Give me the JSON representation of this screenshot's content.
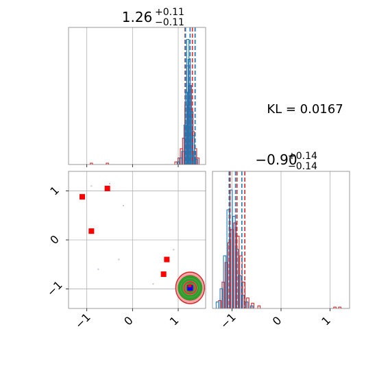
{
  "chart_data": {
    "type": "corner",
    "kl_text": "KL = 0.0167",
    "colors": {
      "series_a": "#1f77b4",
      "series_b": "#d62728",
      "grid": "#b0b0b0",
      "green": "#2ca02c",
      "marker": "#ff0000",
      "truth": "#0000ff"
    },
    "panels": [
      {
        "id": "hist-param-1",
        "type": "histogram",
        "title": {
          "value": "1.26",
          "plus": "+0.11",
          "minus": "−0.11"
        },
        "xlim": [
          -1.4,
          1.6
        ],
        "quantiles_blue": [
          1.16,
          1.26,
          1.37
        ],
        "quantiles_red": [
          1.15,
          1.31,
          1.37
        ],
        "series_a_bins": [
          {
            "x": 1.0,
            "y": 0.02
          },
          {
            "x": 1.05,
            "y": 0.05
          },
          {
            "x": 1.1,
            "y": 0.1
          },
          {
            "x": 1.15,
            "y": 0.3
          },
          {
            "x": 1.18,
            "y": 0.55
          },
          {
            "x": 1.21,
            "y": 0.95
          },
          {
            "x": 1.24,
            "y": 0.8
          },
          {
            "x": 1.27,
            "y": 0.6
          },
          {
            "x": 1.3,
            "y": 0.4
          },
          {
            "x": 1.33,
            "y": 0.22
          },
          {
            "x": 1.36,
            "y": 0.1
          },
          {
            "x": 1.4,
            "y": 0.04
          }
        ],
        "series_b_bins": [
          {
            "x": 0.95,
            "y": 0.02
          },
          {
            "x": 1.02,
            "y": 0.05
          },
          {
            "x": 1.07,
            "y": 0.12
          },
          {
            "x": 1.12,
            "y": 0.2
          },
          {
            "x": 1.17,
            "y": 0.45
          },
          {
            "x": 1.21,
            "y": 0.75
          },
          {
            "x": 1.25,
            "y": 0.6
          },
          {
            "x": 1.29,
            "y": 0.42
          },
          {
            "x": 1.33,
            "y": 0.25
          },
          {
            "x": 1.38,
            "y": 0.12
          },
          {
            "x": 1.43,
            "y": 0.05
          },
          {
            "x": -0.9,
            "y": 0.01
          },
          {
            "x": -0.55,
            "y": 0.01
          }
        ]
      },
      {
        "id": "hist-param-2",
        "type": "histogram",
        "title": {
          "value": "−0.90",
          "plus": "+0.14",
          "minus": "−0.14"
        },
        "xlim": [
          -1.4,
          1.4
        ],
        "xticks": [
          "−1",
          "0",
          "1"
        ],
        "quantiles_blue": [
          -1.06,
          -0.93,
          -0.8
        ],
        "quantiles_red": [
          -1.04,
          -0.9,
          -0.74
        ],
        "series_a_bins": [
          {
            "x": -1.3,
            "y": 0.05
          },
          {
            "x": -1.22,
            "y": 0.15
          },
          {
            "x": -1.15,
            "y": 0.4
          },
          {
            "x": -1.08,
            "y": 0.75
          },
          {
            "x": -1.02,
            "y": 0.9
          },
          {
            "x": -0.96,
            "y": 0.7
          },
          {
            "x": -0.9,
            "y": 0.45
          },
          {
            "x": -0.84,
            "y": 0.25
          },
          {
            "x": -0.78,
            "y": 0.1
          },
          {
            "x": -0.7,
            "y": 0.05
          },
          {
            "x": -0.6,
            "y": 0.02
          }
        ],
        "series_b_bins": [
          {
            "x": -1.25,
            "y": 0.06
          },
          {
            "x": -1.18,
            "y": 0.2
          },
          {
            "x": -1.12,
            "y": 0.35
          },
          {
            "x": -1.06,
            "y": 0.5
          },
          {
            "x": -1.0,
            "y": 0.6
          },
          {
            "x": -0.94,
            "y": 0.65
          },
          {
            "x": -0.88,
            "y": 0.55
          },
          {
            "x": -0.82,
            "y": 0.4
          },
          {
            "x": -0.76,
            "y": 0.2
          },
          {
            "x": -0.68,
            "y": 0.08
          },
          {
            "x": -0.58,
            "y": 0.04
          },
          {
            "x": -0.45,
            "y": 0.02
          },
          {
            "x": 1.1,
            "y": 0.01
          },
          {
            "x": 1.2,
            "y": 0.01
          }
        ]
      },
      {
        "id": "scatter-2d",
        "type": "scatter",
        "xlim": [
          -1.4,
          1.6
        ],
        "ylim": [
          -1.4,
          1.4
        ],
        "xticks": [
          "−1",
          "0",
          "1"
        ],
        "yticks": [
          "1",
          "0",
          "−1"
        ],
        "xtick_values": [
          -1,
          0,
          1
        ],
        "ytick_values": [
          1,
          0,
          -1
        ],
        "outliers_red": [
          {
            "x": -1.1,
            "y": 0.88
          },
          {
            "x": -0.55,
            "y": 1.05
          },
          {
            "x": -0.9,
            "y": 0.18
          },
          {
            "x": 0.75,
            "y": -0.4
          },
          {
            "x": 0.68,
            "y": -0.7
          }
        ],
        "faint_points": [
          {
            "x": -0.9,
            "y": 1.1
          },
          {
            "x": -0.5,
            "y": 1.15
          },
          {
            "x": -0.2,
            "y": 0.7
          },
          {
            "x": -0.75,
            "y": -0.6
          },
          {
            "x": -0.3,
            "y": -0.4
          },
          {
            "x": 0.45,
            "y": -0.9
          },
          {
            "x": 0.9,
            "y": -0.2
          }
        ],
        "center": {
          "x": 1.26,
          "y": -0.98
        },
        "truth": {
          "x": 1.26,
          "y": -0.98
        }
      }
    ]
  }
}
